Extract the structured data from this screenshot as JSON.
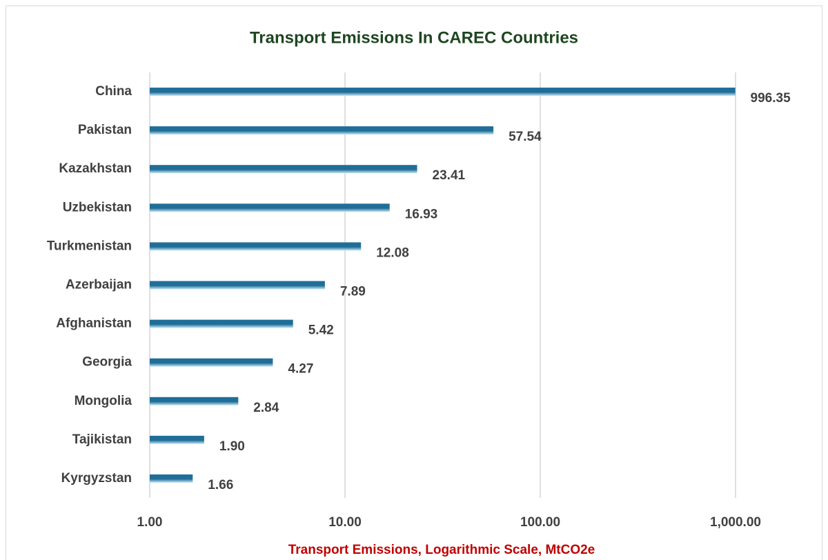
{
  "chart_data": {
    "type": "bar",
    "orientation": "horizontal",
    "title": "Transport Emissions In CAREC Countries",
    "x_label": "Transport Emissions, Logarithmic Scale, MtCO2e",
    "categories": [
      "China",
      "Pakistan",
      "Kazakhstan",
      "Uzbekistan",
      "Turkmenistan",
      "Azerbaijan",
      "Afghanistan",
      "Georgia",
      "Mongolia",
      "Tajikistan",
      "Kyrgyzstan"
    ],
    "values": [
      996.35,
      57.54,
      23.41,
      16.93,
      12.08,
      7.89,
      5.42,
      4.27,
      2.84,
      1.9,
      1.66
    ],
    "value_labels": [
      "996.35",
      "57.54",
      "23.41",
      "16.93",
      "12.08",
      "7.89",
      "5.42",
      "4.27",
      "2.84",
      "1.90",
      "1.66"
    ],
    "color": "#1f6e98",
    "xlim": [
      1,
      1000
    ],
    "log_x": true,
    "xticks": [
      {
        "value": 1,
        "label": "1.00"
      },
      {
        "value": 10,
        "label": "10.00"
      },
      {
        "value": 100,
        "label": "100.00"
      },
      {
        "value": 1000,
        "label": "1,000.00"
      }
    ],
    "grid": true
  }
}
